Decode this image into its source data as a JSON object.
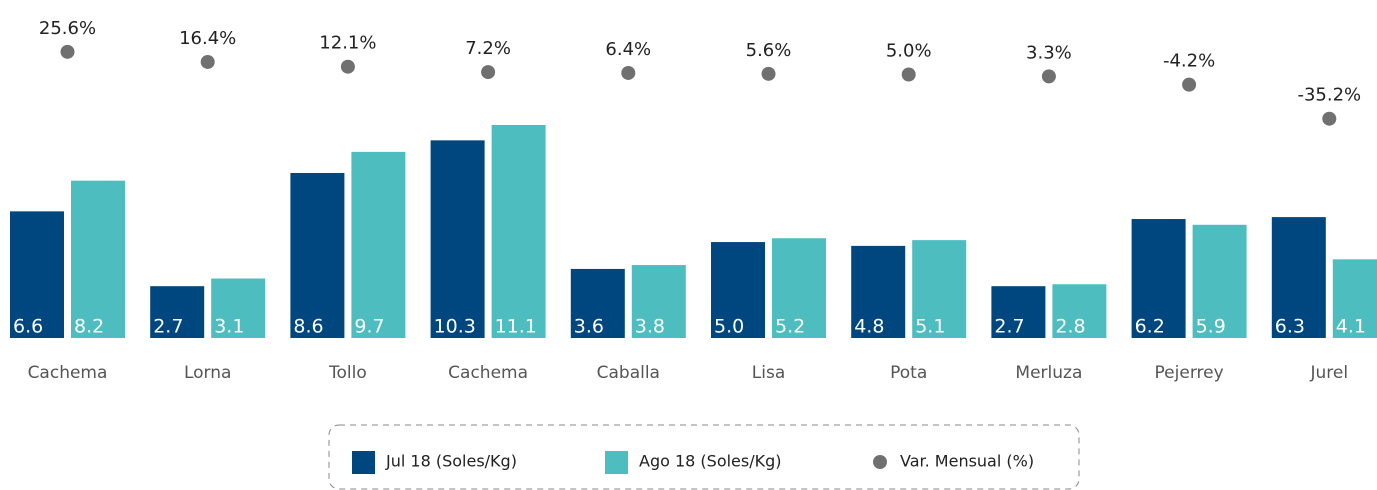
{
  "chart_data": {
    "type": "bar",
    "categories": [
      "Cachema",
      "Lorna",
      "Tollo",
      "Cachema",
      "Caballa",
      "Lisa",
      "Pota",
      "Merluza",
      "Pejerrey",
      "Jurel"
    ],
    "series": [
      {
        "name": "Jul 18 (Soles/Kg)",
        "color": "#00467f",
        "values": [
          6.6,
          2.7,
          8.6,
          10.3,
          3.6,
          5.0,
          4.8,
          2.7,
          6.2,
          6.3
        ],
        "value_labels": [
          "6.6",
          "2.7",
          "8.6",
          "10.3",
          "3.6",
          "5.0",
          "4.8",
          "2.7",
          "6.2",
          "6.3"
        ]
      },
      {
        "name": "Ago 18 (Soles/Kg)",
        "color": "#4dbdbf",
        "values": [
          8.2,
          3.1,
          9.7,
          11.1,
          3.8,
          5.2,
          5.1,
          2.8,
          5.9,
          4.1
        ],
        "value_labels": [
          "8.2",
          "3.1",
          "9.7",
          "11.1",
          "3.8",
          "5.2",
          "5.1",
          "2.8",
          "5.9",
          "4.1"
        ]
      },
      {
        "name": "Var. Mensual (%)",
        "color": "#707070",
        "type": "scatter",
        "values": [
          25.6,
          16.4,
          12.1,
          7.2,
          6.4,
          5.6,
          5.0,
          3.3,
          -4.2,
          -35.2
        ],
        "value_labels": [
          "25.6%",
          "16.4%",
          "12.1%",
          "7.2%",
          "6.4%",
          "5.6%",
          "5.0%",
          "3.3%",
          "-4.2%",
          "-35.2%"
        ]
      }
    ]
  }
}
